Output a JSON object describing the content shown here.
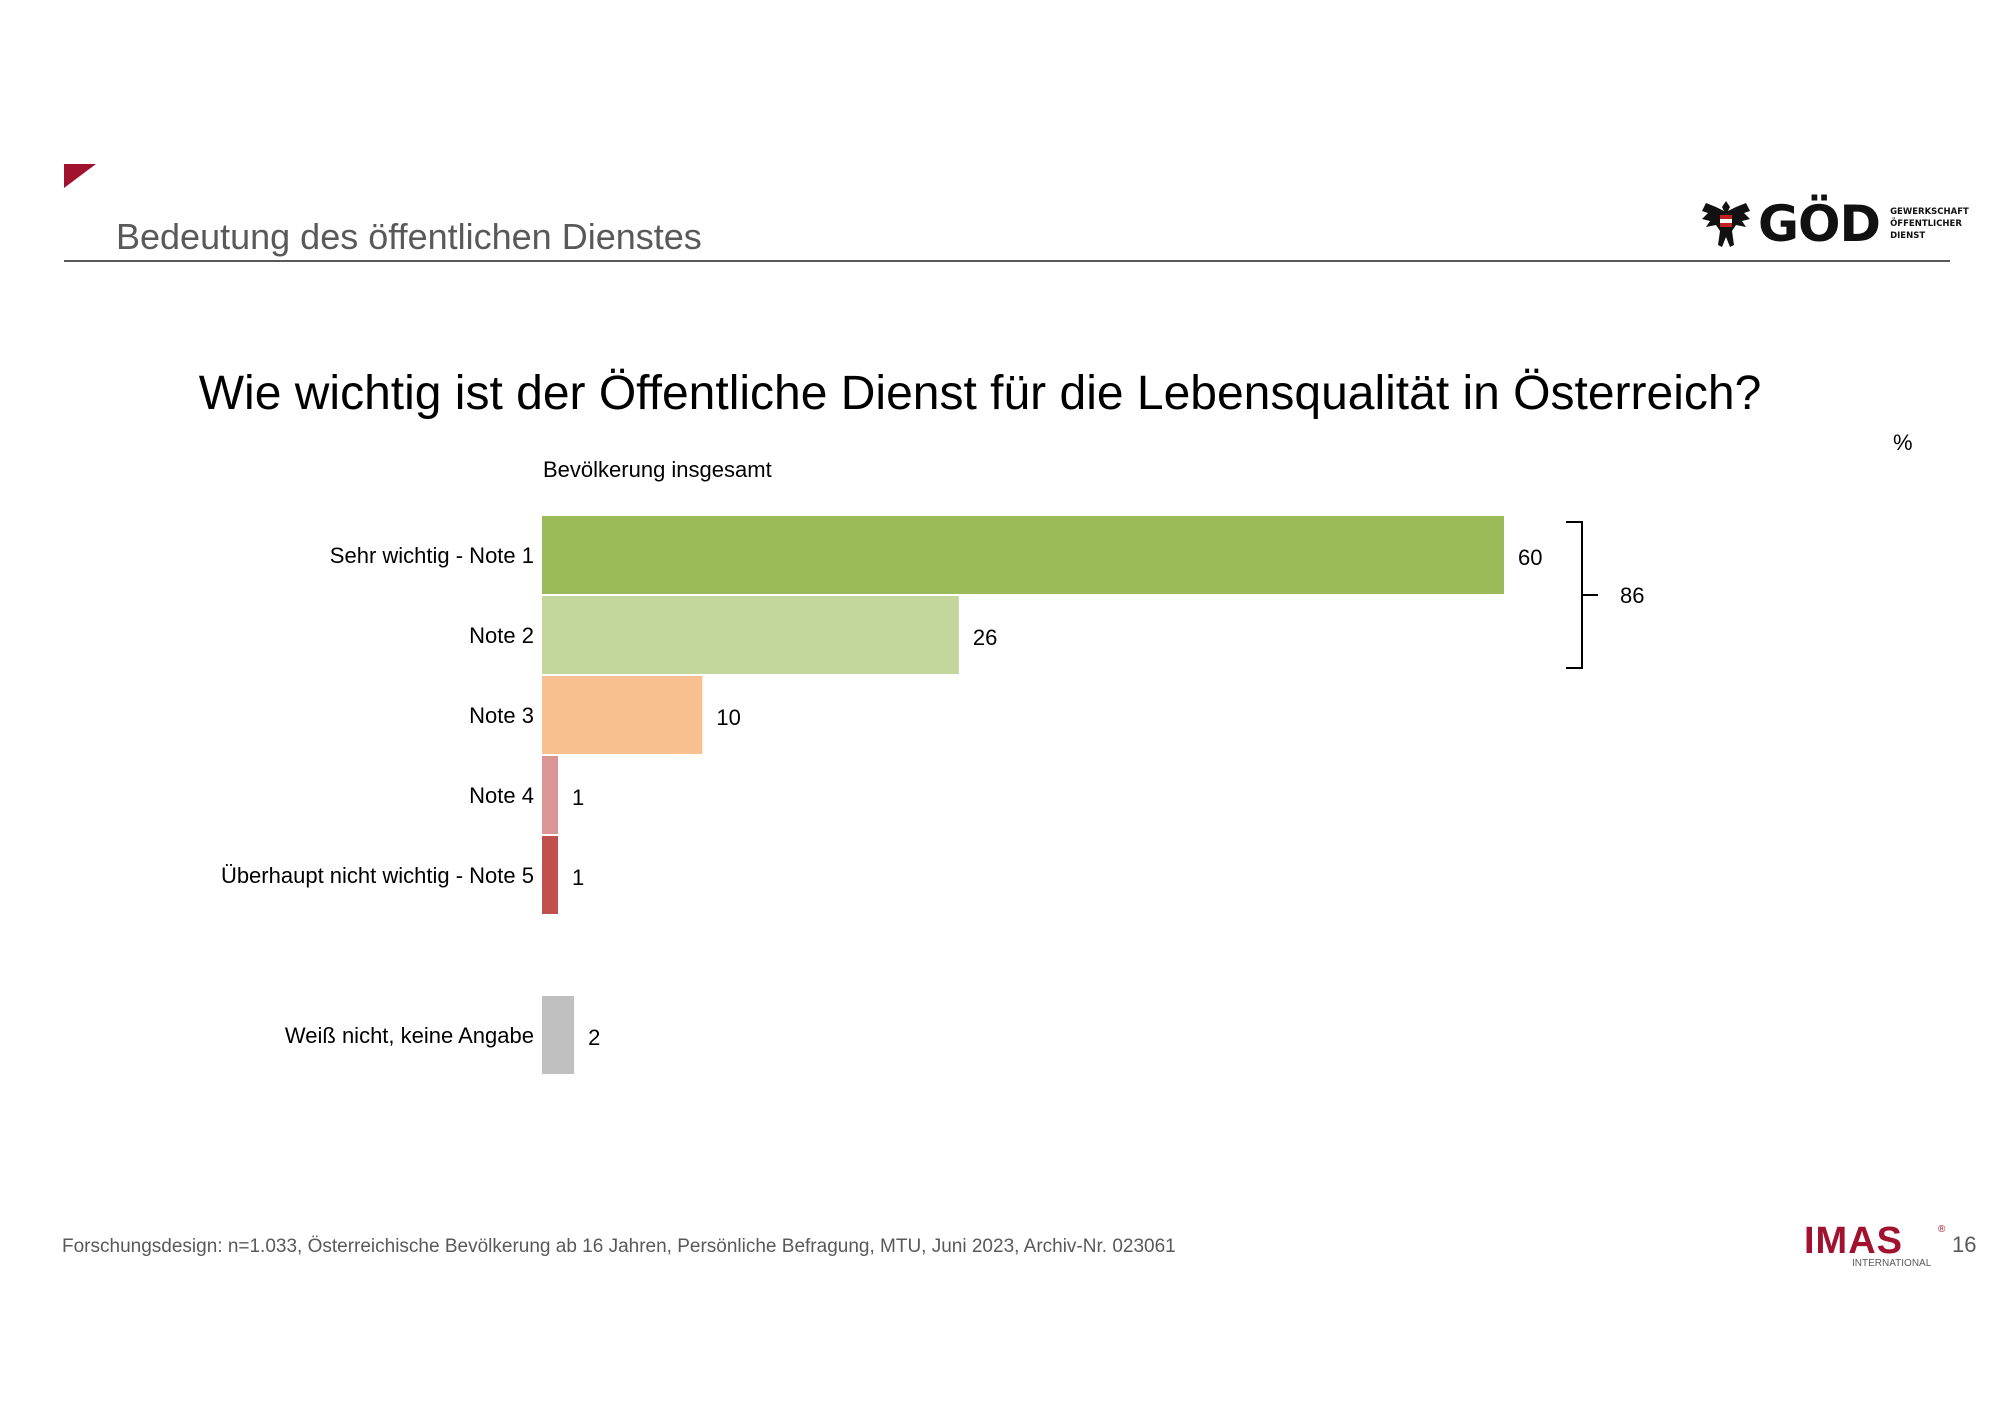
{
  "header": {
    "section_title": "Bedeutung des öffentlichen Dienstes",
    "accent_color": "#a0122e",
    "logo": {
      "word": "GÖD",
      "sub_lines": [
        "GEWERKSCHAFT",
        "ÖFFENTLICHER",
        "DIENST"
      ],
      "icon": "eagle-icon"
    }
  },
  "question": "Wie wichtig ist der Öffentliche Dienst für die Lebensqualität in Österreich?",
  "unit_label": "%",
  "chart_data": {
    "type": "bar",
    "orientation": "horizontal",
    "series_label": "Bevölkerung insgesamt",
    "categories": [
      "Sehr wichtig - Note 1",
      "Note 2",
      "Note 3",
      "Note 4",
      "Überhaupt nicht wichtig - Note 5",
      "Weiß nicht, keine Angabe"
    ],
    "values": [
      60,
      26,
      10,
      1,
      1,
      2
    ],
    "colors": [
      "#9bbb59",
      "#c3d69b",
      "#f9c08f",
      "#d99694",
      "#c0504d",
      "#c0c0c0"
    ],
    "bracket": {
      "from": 0,
      "to": 1,
      "total": 86
    },
    "xlim": [
      0,
      100
    ],
    "grid": false
  },
  "footer": {
    "text": "Forschungsdesign: n=1.033, Österreichische Bevölkerung ab 16 Jahren, Persönliche Befragung, MTU, Juni 2023, Archiv-Nr. 023061",
    "logo_word": "IMAS",
    "logo_sub": "INTERNATIONAL",
    "logo_reg": "®",
    "page_number": "16"
  }
}
